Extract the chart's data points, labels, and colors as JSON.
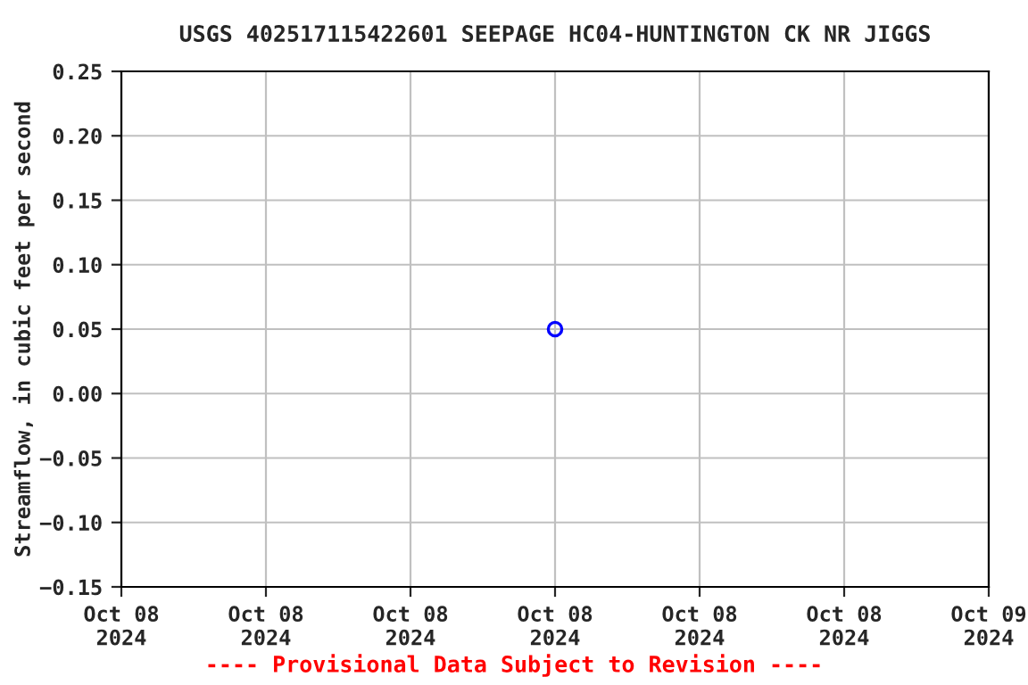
{
  "chart_data": {
    "type": "scatter",
    "title": "USGS 402517115422601 SEEPAGE HC04-HUNTINGTON CK NR JIGGS",
    "ylabel": "Streamflow, in cubic feet per second",
    "x": [
      "2024-10-08T12:00"
    ],
    "series": [
      {
        "color": "#0000ff",
        "values": [
          0.05
        ]
      }
    ],
    "marker": "circle",
    "grid": true,
    "xlim": [
      "2024-10-08T00:00",
      "2024-10-09T00:00"
    ],
    "xticks": [
      {
        "value": "2024-10-08T00:00",
        "label": "Oct 08\n2024"
      },
      {
        "value": "2024-10-08T04:00",
        "label": "Oct 08\n2024"
      },
      {
        "value": "2024-10-08T08:00",
        "label": "Oct 08\n2024"
      },
      {
        "value": "2024-10-08T12:00",
        "label": "Oct 08\n2024"
      },
      {
        "value": "2024-10-08T16:00",
        "label": "Oct 08\n2024"
      },
      {
        "value": "2024-10-08T20:00",
        "label": "Oct 08\n2024"
      },
      {
        "value": "2024-10-09T00:00",
        "label": "Oct 09\n2024"
      }
    ],
    "ylim": [
      -0.15,
      0.25
    ],
    "yticks": [
      {
        "value": -0.15,
        "label": "−0.15"
      },
      {
        "value": -0.1,
        "label": "−0.10"
      },
      {
        "value": -0.05,
        "label": "−0.05"
      },
      {
        "value": 0,
        "label": "0.00"
      },
      {
        "value": 0.05,
        "label": "0.05"
      },
      {
        "value": 0.1,
        "label": "0.10"
      },
      {
        "value": 0.15,
        "label": "0.15"
      },
      {
        "value": 0.2,
        "label": "0.20"
      },
      {
        "value": 0.25,
        "label": "0.25"
      }
    ],
    "annotations": [
      "---- Provisional Data Subject to Revision ----"
    ]
  }
}
